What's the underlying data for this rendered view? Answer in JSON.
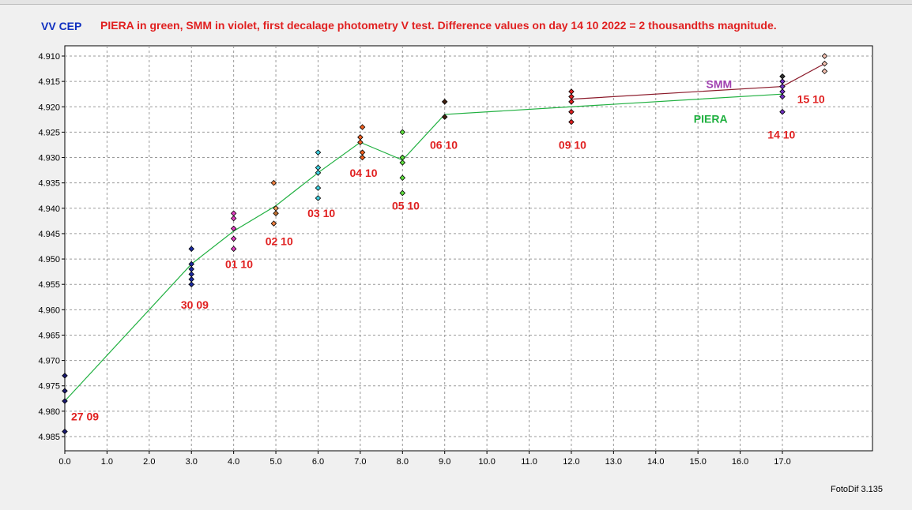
{
  "star_label": "VV CEP",
  "title": "PIERA in green, SMM in violet, first decalage photometry V test.  Difference values on  day 14 10 2022 = 2 thousandths magnitude.",
  "footer": "FotoDif 3.135",
  "colors": {
    "star_label": "#1030c0",
    "title": "#e02020",
    "piera": "#20b040",
    "smm": "#8b1a2a",
    "smm_label": "#a040b0",
    "piera_label": "#20b040",
    "date_label": "#e02020"
  },
  "chart_data": {
    "type": "scatter",
    "grid": true,
    "x_ticks": [
      "0.0",
      "1.0",
      "2.0",
      "3.0",
      "4.0",
      "5.0",
      "6.0",
      "7.0",
      "8.0",
      "9.0",
      "10.0",
      "11.0",
      "12.0",
      "13.0",
      "14.0",
      "15.0",
      "16.0",
      "17.0"
    ],
    "y_ticks": [
      "4.910",
      "4.915",
      "4.920",
      "4.925",
      "4.930",
      "4.935",
      "4.940",
      "4.945",
      "4.950",
      "4.955",
      "4.960",
      "4.965",
      "4.970",
      "4.975",
      "4.980",
      "4.985"
    ],
    "xlim": [
      0,
      18
    ],
    "ylim": [
      4.9075,
      4.9885
    ],
    "y_inverted": true,
    "series": [
      {
        "name": "PIERA",
        "type": "line",
        "color": "#20b040",
        "x": [
          0.0,
          3.0,
          4.0,
          5.0,
          6.0,
          7.0,
          8.0,
          9.0,
          12.0,
          17.0
        ],
        "y": [
          4.978,
          4.951,
          4.9445,
          4.9395,
          4.933,
          4.927,
          4.9305,
          4.9215,
          4.92,
          4.9175
        ]
      },
      {
        "name": "SMM",
        "type": "line",
        "color": "#8b1a2a",
        "x": [
          12.0,
          17.0,
          18.0
        ],
        "y": [
          4.9185,
          4.916,
          4.9115
        ]
      }
    ],
    "points": [
      {
        "x": 0.0,
        "y": 4.973,
        "c": "#1a1a6e"
      },
      {
        "x": 0.0,
        "y": 4.976,
        "c": "#1a1a6e"
      },
      {
        "x": 0.0,
        "y": 4.978,
        "c": "#1a1a6e"
      },
      {
        "x": 0.0,
        "y": 4.984,
        "c": "#1a1a6e"
      },
      {
        "x": 3.0,
        "y": 4.948,
        "c": "#1a2aa0"
      },
      {
        "x": 3.0,
        "y": 4.951,
        "c": "#1a2aa0"
      },
      {
        "x": 3.0,
        "y": 4.952,
        "c": "#1a2aa0"
      },
      {
        "x": 3.0,
        "y": 4.953,
        "c": "#1a2aa0"
      },
      {
        "x": 3.0,
        "y": 4.954,
        "c": "#1a2aa0"
      },
      {
        "x": 3.0,
        "y": 4.955,
        "c": "#1a2aa0"
      },
      {
        "x": 4.0,
        "y": 4.941,
        "c": "#e040c0"
      },
      {
        "x": 4.0,
        "y": 4.942,
        "c": "#e040c0"
      },
      {
        "x": 4.0,
        "y": 4.944,
        "c": "#e040c0"
      },
      {
        "x": 4.0,
        "y": 4.946,
        "c": "#e040c0"
      },
      {
        "x": 4.0,
        "y": 4.948,
        "c": "#e040c0"
      },
      {
        "x": 4.95,
        "y": 4.935,
        "c": "#f08040"
      },
      {
        "x": 5.0,
        "y": 4.94,
        "c": "#f0a060"
      },
      {
        "x": 5.0,
        "y": 4.941,
        "c": "#c07030"
      },
      {
        "x": 4.95,
        "y": 4.943,
        "c": "#f08040"
      },
      {
        "x": 6.0,
        "y": 4.929,
        "c": "#40d0e0"
      },
      {
        "x": 6.0,
        "y": 4.932,
        "c": "#40d0e0"
      },
      {
        "x": 6.0,
        "y": 4.933,
        "c": "#40d0e0"
      },
      {
        "x": 6.0,
        "y": 4.936,
        "c": "#40d0e0"
      },
      {
        "x": 6.0,
        "y": 4.938,
        "c": "#40d0e0"
      },
      {
        "x": 7.05,
        "y": 4.924,
        "c": "#f06020"
      },
      {
        "x": 7.0,
        "y": 4.926,
        "c": "#f06020"
      },
      {
        "x": 7.0,
        "y": 4.927,
        "c": "#f06020"
      },
      {
        "x": 7.05,
        "y": 4.929,
        "c": "#f06020"
      },
      {
        "x": 7.05,
        "y": 4.93,
        "c": "#f06020"
      },
      {
        "x": 8.0,
        "y": 4.925,
        "c": "#60e040"
      },
      {
        "x": 8.0,
        "y": 4.93,
        "c": "#60e040"
      },
      {
        "x": 8.0,
        "y": 4.931,
        "c": "#60e040"
      },
      {
        "x": 8.0,
        "y": 4.934,
        "c": "#60e040"
      },
      {
        "x": 8.0,
        "y": 4.937,
        "c": "#60e040"
      },
      {
        "x": 9.0,
        "y": 4.919,
        "c": "#402010"
      },
      {
        "x": 9.0,
        "y": 4.922,
        "c": "#402010"
      },
      {
        "x": 12.0,
        "y": 4.917,
        "c": "#e02020"
      },
      {
        "x": 12.0,
        "y": 4.918,
        "c": "#e02020"
      },
      {
        "x": 12.0,
        "y": 4.919,
        "c": "#e02020"
      },
      {
        "x": 12.0,
        "y": 4.921,
        "c": "#e02020"
      },
      {
        "x": 12.0,
        "y": 4.923,
        "c": "#e02020"
      },
      {
        "x": 17.0,
        "y": 4.914,
        "c": "#303030"
      },
      {
        "x": 17.0,
        "y": 4.915,
        "c": "#7030c0"
      },
      {
        "x": 17.0,
        "y": 4.916,
        "c": "#7030c0"
      },
      {
        "x": 17.0,
        "y": 4.917,
        "c": "#7030c0"
      },
      {
        "x": 17.0,
        "y": 4.918,
        "c": "#7030c0"
      },
      {
        "x": 17.0,
        "y": 4.921,
        "c": "#7030c0"
      },
      {
        "x": 18.0,
        "y": 4.91,
        "c": "#f4c0b0"
      },
      {
        "x": 18.0,
        "y": 4.9115,
        "c": "#f4c0b0"
      },
      {
        "x": 18.0,
        "y": 4.913,
        "c": "#f4c0b0"
      }
    ],
    "series_labels": [
      {
        "text": "SMM",
        "x": 15.5,
        "y": 4.9155,
        "color": "#a040b0"
      },
      {
        "text": "PIERA",
        "x": 15.3,
        "y": 4.9224,
        "color": "#20b040"
      }
    ],
    "date_labels": [
      {
        "text": "27 09",
        "x": 0.15,
        "y": 4.981
      },
      {
        "text": "30 09",
        "x": 2.75,
        "y": 4.959
      },
      {
        "text": "01 10",
        "x": 3.8,
        "y": 4.951
      },
      {
        "text": "02 10",
        "x": 4.75,
        "y": 4.9465
      },
      {
        "text": "03 10",
        "x": 5.75,
        "y": 4.941
      },
      {
        "text": "04 10",
        "x": 6.75,
        "y": 4.933
      },
      {
        "text": "05 10",
        "x": 7.75,
        "y": 4.9395
      },
      {
        "text": "06 10",
        "x": 8.65,
        "y": 4.9275
      },
      {
        "text": "09 10",
        "x": 11.7,
        "y": 4.9275
      },
      {
        "text": "14 10",
        "x": 16.65,
        "y": 4.9255
      },
      {
        "text": "15 10",
        "x": 17.35,
        "y": 4.9185
      }
    ]
  }
}
